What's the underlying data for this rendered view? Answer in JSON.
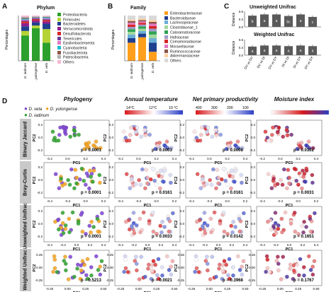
{
  "panelA": {
    "label": "A",
    "title": "Phylum",
    "ylabel": "Percentages",
    "samples": [
      "D. iadinum",
      "D. yulongense",
      "D. vela"
    ],
    "legend": [
      {
        "name": "Proteobacteria",
        "color": "#2ca02c"
      },
      {
        "name": "Firmicutes",
        "color": "#b5d334"
      },
      {
        "name": "Bacteroidetes",
        "color": "#1f3f8f"
      },
      {
        "name": "Verrucomicrobiota",
        "color": "#8f1f8f"
      },
      {
        "name": "Desulfobacterota",
        "color": "#d62728"
      },
      {
        "name": "Tenericutes",
        "color": "#6a3d9a"
      },
      {
        "name": "Epsilonbacteraeota",
        "color": "#e377c2"
      },
      {
        "name": "Cyanobacteria",
        "color": "#17becf"
      },
      {
        "name": "Fusobacteriota",
        "color": "#8c564b"
      },
      {
        "name": "Patescibacteria",
        "color": "#b0b0b0"
      },
      {
        "name": "Others",
        "color": "#f7b6d2"
      }
    ]
  },
  "panelB": {
    "label": "B",
    "title": "Family",
    "ylabel": "Percentages",
    "samples": [
      "D. iadinum",
      "D. yulongense",
      "D. vela"
    ],
    "legend": [
      {
        "name": "Enterobacteriaceae",
        "color": "#ff9f1c"
      },
      {
        "name": "Bacteroidaceae",
        "color": "#1f3f8f"
      },
      {
        "name": "Lachnospiraceae",
        "color": "#6baed6"
      },
      {
        "name": "Clostridiaceae_1",
        "color": "#a1d99b"
      },
      {
        "name": "Caloramatoraceae",
        "color": "#31a354"
      },
      {
        "name": "Hafniaceae",
        "color": "#9e9ac8"
      },
      {
        "name": "Comamonadaceae",
        "color": "#d62728"
      },
      {
        "name": "Moraxellaceae",
        "color": "#e377c2"
      },
      {
        "name": "Ruminococcaceae",
        "color": "#8c564b"
      },
      {
        "name": "Akkermansiaceae",
        "color": "#fdd0a2"
      },
      {
        "name": "Others",
        "color": "#d9d9d9"
      }
    ]
  },
  "panelC": {
    "label": "C",
    "top_title": "Unweighted Unifrac",
    "bottom_title": "Weighted Unifrac",
    "ylabel": "Distance",
    "yticks": [
      "0.6",
      "0.3",
      "0.0"
    ],
    "categories": [
      "DV vs DV",
      "DV vs DI",
      "DV vs DY",
      "DI vs DI",
      "DI vs DY",
      "DY vs DY"
    ],
    "top_letters": [
      "b",
      "a",
      "a",
      "bc",
      "a",
      "c"
    ],
    "bottom_letters": [
      "a",
      "a",
      "a",
      "a",
      "a",
      "a"
    ]
  },
  "panelD": {
    "label": "D",
    "columns": [
      "Phylogeny",
      "Annual temperature",
      "Net primary productivity",
      "Moisture index"
    ],
    "rows": [
      "Binary Jaccard",
      "Bray-Curtis",
      "Unweighted Unifrac",
      "Weighted Unifrac"
    ],
    "species_legend": [
      {
        "name": "D. vela",
        "color": "#7b3fd1"
      },
      {
        "name": "D. yulongense",
        "color": "#f4a21d"
      },
      {
        "name": "D. iadinum",
        "color": "#2ca02c"
      }
    ],
    "temp_scale": {
      "labels": [
        "14°C",
        "12°C",
        "10 °C"
      ],
      "colors": [
        "#d7191c",
        "#ffffff",
        "#2b3ec6"
      ]
    },
    "npp_scale": {
      "labels": [
        "400",
        "300",
        "200",
        "100"
      ],
      "colors": [
        "#d7191c",
        "#ffffff",
        "#2b3ec6"
      ]
    },
    "moist_scale": {
      "colors": [
        "#ffffff",
        "#d7191c",
        "#2b3ec6"
      ]
    },
    "xlabel": "PC1",
    "ylabel": "PC2",
    "pvalues": [
      [
        "p = 0.0001",
        "p = 0.0003",
        "p = 0.0008",
        "p = 0.0102"
      ],
      [
        "p = 0.0001",
        "p = 0.0161",
        "p = 0.0161",
        "p = 0.0031"
      ],
      [
        "p = 0.0001",
        "p = 0.0033",
        "p = 0.0142",
        "p = 0.1651"
      ],
      [
        "p = 0.5213",
        "p = 0.0021",
        "p = 0.3968",
        "p = 0.1767"
      ]
    ],
    "xticks": [
      [
        "-0.2",
        "0.0",
        "0.2",
        "0.4"
      ],
      [
        "-0.4",
        "-0.2",
        "0.0",
        "0.2"
      ],
      [
        "-0.4",
        "-0.2",
        "0.0",
        "0.2",
        "0.4"
      ],
      [
        "-0.25",
        "0.00",
        "0.25",
        "0.50"
      ]
    ],
    "yticks": [
      [
        "0.2",
        "0.0",
        "-0.2"
      ],
      [
        "0.2",
        "0.0",
        "-0.2"
      ],
      [
        "0.2",
        "0.0",
        "-0.2"
      ],
      [
        "0.25",
        "0.00",
        "-0.25"
      ]
    ]
  }
}
